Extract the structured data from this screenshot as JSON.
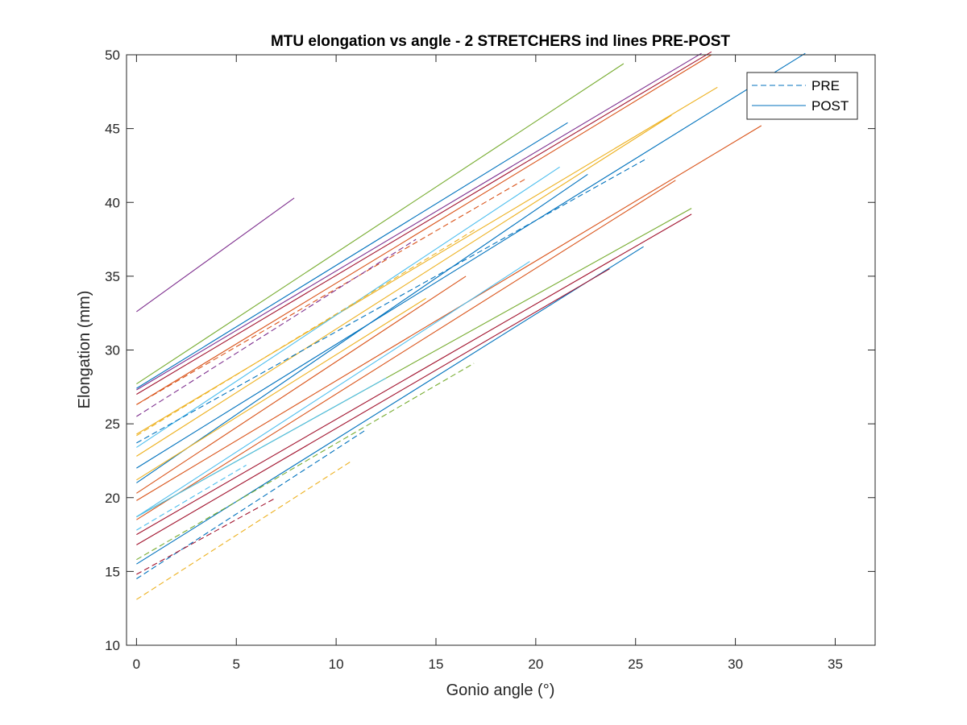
{
  "chart_data": {
    "type": "line",
    "title": "MTU elongation vs angle - 2 STRETCHERS ind lines PRE-POST",
    "xlabel": "Gonio angle (°)",
    "ylabel": "Elongation (mm)",
    "xlim": [
      -0.5,
      37
    ],
    "ylim": [
      10,
      50
    ],
    "xticks": [
      0,
      5,
      10,
      15,
      20,
      25,
      30,
      35
    ],
    "yticks": [
      10,
      15,
      20,
      25,
      30,
      35,
      40,
      45,
      50
    ],
    "grid": false,
    "legend": {
      "placement": "top-right",
      "entries": [
        {
          "label": "PRE",
          "style": "dashed",
          "color": "#0072BD"
        },
        {
          "label": "POST",
          "style": "solid",
          "color": "#0072BD"
        }
      ]
    },
    "series": [
      {
        "style": "solid",
        "color": "#7E2F8E",
        "x": [
          0,
          7.9
        ],
        "y": [
          32.6,
          40.3
        ]
      },
      {
        "style": "solid",
        "color": "#77AC30",
        "x": [
          0,
          24.4
        ],
        "y": [
          27.7,
          49.4
        ]
      },
      {
        "style": "solid",
        "color": "#7E2F8E",
        "x": [
          0,
          28.3
        ],
        "y": [
          27.3,
          50.1
        ]
      },
      {
        "style": "solid",
        "color": "#A2142F",
        "x": [
          0,
          28.8
        ],
        "y": [
          27.0,
          50.2
        ]
      },
      {
        "style": "solid",
        "color": "#D95319",
        "x": [
          0,
          28.8
        ],
        "y": [
          26.3,
          50.0
        ]
      },
      {
        "style": "solid",
        "color": "#0072BD",
        "x": [
          0,
          21.6
        ],
        "y": [
          27.4,
          45.4
        ]
      },
      {
        "style": "solid",
        "color": "#0072BD",
        "x": [
          0,
          33.5
        ],
        "y": [
          22.0,
          50.1
        ]
      },
      {
        "style": "solid",
        "color": "#EDB120",
        "x": [
          0,
          29.1
        ],
        "y": [
          24.3,
          47.8
        ]
      },
      {
        "style": "solid",
        "color": "#EDB120",
        "x": [
          0,
          26.8
        ],
        "y": [
          22.8,
          45.9
        ]
      },
      {
        "style": "solid",
        "color": "#D95319",
        "x": [
          0,
          31.3
        ],
        "y": [
          19.8,
          45.2
        ]
      },
      {
        "style": "solid",
        "color": "#4DBEEE",
        "x": [
          0,
          21.2
        ],
        "y": [
          23.4,
          42.4
        ]
      },
      {
        "style": "solid",
        "color": "#0072BD",
        "x": [
          0,
          22.6
        ],
        "y": [
          21.0,
          41.9
        ]
      },
      {
        "style": "solid",
        "color": "#D95319",
        "x": [
          0,
          27.0
        ],
        "y": [
          18.5,
          41.5
        ]
      },
      {
        "style": "solid",
        "color": "#77AC30",
        "x": [
          0,
          27.8
        ],
        "y": [
          18.7,
          39.6
        ]
      },
      {
        "style": "solid",
        "color": "#A2142F",
        "x": [
          0,
          27.8
        ],
        "y": [
          17.5,
          39.2
        ]
      },
      {
        "style": "solid",
        "color": "#0072BD",
        "x": [
          0,
          25.4
        ],
        "y": [
          15.5,
          37.0
        ]
      },
      {
        "style": "solid",
        "color": "#A2142F",
        "x": [
          0,
          23.7
        ],
        "y": [
          16.8,
          35.5
        ]
      },
      {
        "style": "solid",
        "color": "#4DBEEE",
        "x": [
          0,
          19.7
        ],
        "y": [
          18.7,
          36.0
        ]
      },
      {
        "style": "solid",
        "color": "#4DBEEE",
        "x": [
          0,
          12.5
        ],
        "y": [
          18.7,
          28.1
        ]
      },
      {
        "style": "solid",
        "color": "#D95319",
        "x": [
          0,
          16.5
        ],
        "y": [
          20.3,
          35.0
        ]
      },
      {
        "style": "solid",
        "color": "#EDB120",
        "x": [
          0,
          14.5
        ],
        "y": [
          21.2,
          33.5
        ]
      },
      {
        "style": "dashed",
        "color": "#0072BD",
        "x": [
          0,
          25.6
        ],
        "y": [
          23.7,
          43.0
        ]
      },
      {
        "style": "dashed",
        "color": "#D95319",
        "x": [
          0,
          19.5
        ],
        "y": [
          26.3,
          41.6
        ]
      },
      {
        "style": "dashed",
        "color": "#EDB120",
        "x": [
          0,
          17.0
        ],
        "y": [
          24.2,
          38.2
        ]
      },
      {
        "style": "dashed",
        "color": "#7E2F8E",
        "x": [
          0,
          14.0
        ],
        "y": [
          25.5,
          37.5
        ]
      },
      {
        "style": "dashed",
        "color": "#77AC30",
        "x": [
          0,
          16.9
        ],
        "y": [
          15.8,
          29.1
        ]
      },
      {
        "style": "dashed",
        "color": "#0072BD",
        "x": [
          0,
          11.5
        ],
        "y": [
          14.5,
          24.6
        ]
      },
      {
        "style": "dashed",
        "color": "#EDB120",
        "x": [
          0,
          10.8
        ],
        "y": [
          13.1,
          22.5
        ]
      },
      {
        "style": "dashed",
        "color": "#A2142F",
        "x": [
          0,
          7.0
        ],
        "y": [
          14.8,
          20.0
        ]
      },
      {
        "style": "dashed",
        "color": "#4DBEEE",
        "x": [
          0,
          5.5
        ],
        "y": [
          17.8,
          22.2
        ]
      }
    ]
  }
}
